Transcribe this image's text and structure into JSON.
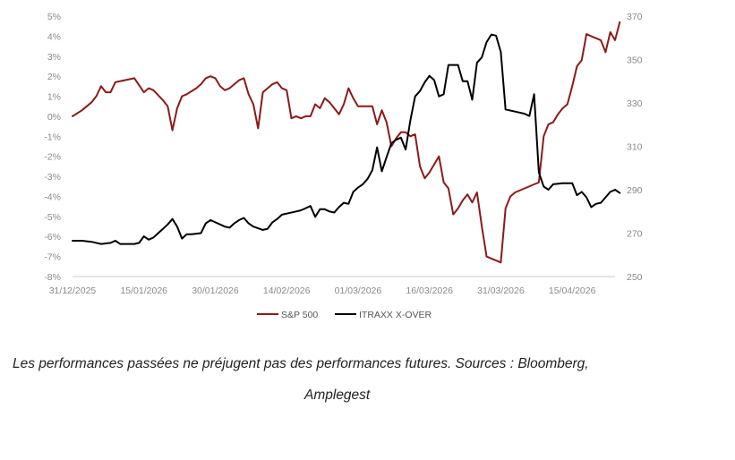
{
  "chart_data": {
    "type": "line",
    "title": "",
    "xlabel": "",
    "ylabel_left": "",
    "ylabel_right": "",
    "x_tick_labels": [
      "31/12/2025",
      "15/01/2026",
      "30/01/2026",
      "14/02/2026",
      "01/03/2026",
      "16/03/2026",
      "31/03/2026",
      "15/04/2026"
    ],
    "x_range": [
      "2025-12-31",
      "2026-04-24"
    ],
    "y_left_ticks": [
      "5%",
      "4%",
      "3%",
      "2%",
      "1%",
      "0%",
      "-1%",
      "-2%",
      "-3%",
      "-4%",
      "-5%",
      "-6%",
      "-7%",
      "-8%"
    ],
    "y_left_range": [
      -8,
      5
    ],
    "y_right_ticks": [
      "370",
      "350",
      "330",
      "310",
      "290",
      "270",
      "250"
    ],
    "y_right_range": [
      250,
      370
    ],
    "grid": false,
    "legend_position": "bottom",
    "series": [
      {
        "name": "S&P 500",
        "axis": "left",
        "color": "#8b1a1a",
        "points": [
          [
            "2025-12-31",
            0.0
          ],
          [
            "2026-01-02",
            0.3
          ],
          [
            "2026-01-04",
            0.7
          ],
          [
            "2026-01-05",
            1.0
          ],
          [
            "2026-01-06",
            1.5
          ],
          [
            "2026-01-07",
            1.2
          ],
          [
            "2026-01-08",
            1.2
          ],
          [
            "2026-01-09",
            1.7
          ],
          [
            "2026-01-11",
            1.8
          ],
          [
            "2026-01-13",
            1.9
          ],
          [
            "2026-01-15",
            1.2
          ],
          [
            "2026-01-16",
            1.4
          ],
          [
            "2026-01-17",
            1.3
          ],
          [
            "2026-01-19",
            0.8
          ],
          [
            "2026-01-20",
            0.5
          ],
          [
            "2026-01-21",
            -0.7
          ],
          [
            "2026-01-22",
            0.4
          ],
          [
            "2026-01-23",
            1.0
          ],
          [
            "2026-01-24",
            1.1
          ],
          [
            "2026-01-26",
            1.4
          ],
          [
            "2026-01-27",
            1.6
          ],
          [
            "2026-01-28",
            1.9
          ],
          [
            "2026-01-29",
            2.0
          ],
          [
            "2026-01-30",
            1.9
          ],
          [
            "2026-01-31",
            1.5
          ],
          [
            "2026-02-01",
            1.3
          ],
          [
            "2026-02-02",
            1.4
          ],
          [
            "2026-02-03",
            1.6
          ],
          [
            "2026-02-04",
            1.8
          ],
          [
            "2026-02-05",
            1.9
          ],
          [
            "2026-02-06",
            1.1
          ],
          [
            "2026-02-07",
            0.6
          ],
          [
            "2026-02-08",
            -0.6
          ],
          [
            "2026-02-09",
            1.2
          ],
          [
            "2026-02-10",
            1.4
          ],
          [
            "2026-02-11",
            1.6
          ],
          [
            "2026-02-12",
            1.7
          ],
          [
            "2026-02-13",
            1.4
          ],
          [
            "2026-02-14",
            1.3
          ],
          [
            "2026-02-15",
            -0.1
          ],
          [
            "2026-02-16",
            0.0
          ],
          [
            "2026-02-17",
            -0.1
          ],
          [
            "2026-02-18",
            0.0
          ],
          [
            "2026-02-19",
            0.0
          ],
          [
            "2026-02-20",
            0.6
          ],
          [
            "2026-02-21",
            0.4
          ],
          [
            "2026-02-22",
            0.9
          ],
          [
            "2026-02-23",
            0.7
          ],
          [
            "2026-02-24",
            0.4
          ],
          [
            "2026-02-25",
            0.1
          ],
          [
            "2026-02-26",
            0.6
          ],
          [
            "2026-02-27",
            1.4
          ],
          [
            "2026-02-28",
            0.9
          ],
          [
            "2026-03-01",
            0.5
          ],
          [
            "2026-03-02",
            0.5
          ],
          [
            "2026-03-03",
            0.5
          ],
          [
            "2026-03-04",
            0.5
          ],
          [
            "2026-03-05",
            -0.4
          ],
          [
            "2026-03-06",
            0.3
          ],
          [
            "2026-03-07",
            -0.3
          ],
          [
            "2026-03-08",
            -1.5
          ],
          [
            "2026-03-09",
            -1.1
          ],
          [
            "2026-03-10",
            -0.8
          ],
          [
            "2026-03-11",
            -0.8
          ],
          [
            "2026-03-12",
            -1.0
          ],
          [
            "2026-03-13",
            -0.9
          ],
          [
            "2026-03-14",
            -2.5
          ],
          [
            "2026-03-15",
            -3.1
          ],
          [
            "2026-03-16",
            -2.8
          ],
          [
            "2026-03-17",
            -2.4
          ],
          [
            "2026-03-18",
            -2.0
          ],
          [
            "2026-03-19",
            -3.3
          ],
          [
            "2026-03-20",
            -3.6
          ],
          [
            "2026-03-21",
            -4.9
          ],
          [
            "2026-03-22",
            -4.6
          ],
          [
            "2026-03-23",
            -4.2
          ],
          [
            "2026-03-24",
            -3.9
          ],
          [
            "2026-03-25",
            -4.3
          ],
          [
            "2026-03-26",
            -3.8
          ],
          [
            "2026-03-27",
            -5.5
          ],
          [
            "2026-03-28",
            -7.0
          ],
          [
            "2026-03-29",
            -7.1
          ],
          [
            "2026-03-30",
            -7.2
          ],
          [
            "2026-03-31",
            -7.3
          ],
          [
            "2026-04-01",
            -4.6
          ],
          [
            "2026-04-02",
            -4.0
          ],
          [
            "2026-04-03",
            -3.8
          ],
          [
            "2026-04-05",
            -3.6
          ],
          [
            "2026-04-07",
            -3.4
          ],
          [
            "2026-04-08",
            -3.3
          ],
          [
            "2026-04-09",
            -1.0
          ],
          [
            "2026-04-10",
            -0.4
          ],
          [
            "2026-04-11",
            -0.3
          ],
          [
            "2026-04-12",
            0.1
          ],
          [
            "2026-04-13",
            0.4
          ],
          [
            "2026-04-14",
            0.6
          ],
          [
            "2026-04-15",
            1.5
          ],
          [
            "2026-04-16",
            2.5
          ],
          [
            "2026-04-17",
            2.8
          ],
          [
            "2026-04-18",
            4.1
          ],
          [
            "2026-04-19",
            4.0
          ],
          [
            "2026-04-21",
            3.8
          ],
          [
            "2026-04-22",
            3.2
          ],
          [
            "2026-04-23",
            4.2
          ],
          [
            "2026-04-24",
            3.8
          ],
          [
            "2026-04-25",
            4.7
          ]
        ]
      },
      {
        "name": "ITRAXX X-OVER",
        "axis": "right",
        "color": "#000000",
        "points": [
          [
            "2025-12-31",
            266.5
          ],
          [
            "2026-01-02",
            266.5
          ],
          [
            "2026-01-04",
            266.0
          ],
          [
            "2026-01-06",
            265.0
          ],
          [
            "2026-01-08",
            265.5
          ],
          [
            "2026-01-09",
            266.5
          ],
          [
            "2026-01-10",
            265.0
          ],
          [
            "2026-01-12",
            265.0
          ],
          [
            "2026-01-13",
            265.0
          ],
          [
            "2026-01-14",
            265.5
          ],
          [
            "2026-01-15",
            268.5
          ],
          [
            "2026-01-16",
            267.0
          ],
          [
            "2026-01-17",
            268.0
          ],
          [
            "2026-01-18",
            270.0
          ],
          [
            "2026-01-19",
            272.0
          ],
          [
            "2026-01-20",
            274.0
          ],
          [
            "2026-01-21",
            276.5
          ],
          [
            "2026-01-22",
            273.0
          ],
          [
            "2026-01-23",
            267.5
          ],
          [
            "2026-01-24",
            269.5
          ],
          [
            "2026-01-25",
            269.5
          ],
          [
            "2026-01-27",
            270.0
          ],
          [
            "2026-01-28",
            274.5
          ],
          [
            "2026-01-29",
            276.0
          ],
          [
            "2026-01-30",
            275.0
          ],
          [
            "2026-02-01",
            273.0
          ],
          [
            "2026-02-02",
            272.5
          ],
          [
            "2026-02-03",
            274.5
          ],
          [
            "2026-02-04",
            276.0
          ],
          [
            "2026-02-05",
            277.0
          ],
          [
            "2026-02-06",
            274.5
          ],
          [
            "2026-02-07",
            273.0
          ],
          [
            "2026-02-09",
            271.5
          ],
          [
            "2026-02-10",
            272.0
          ],
          [
            "2026-02-11",
            275.0
          ],
          [
            "2026-02-12",
            276.5
          ],
          [
            "2026-02-13",
            278.5
          ],
          [
            "2026-02-14",
            279.0
          ],
          [
            "2026-02-16",
            280.0
          ],
          [
            "2026-02-17",
            280.5
          ],
          [
            "2026-02-18",
            281.5
          ],
          [
            "2026-02-19",
            282.5
          ],
          [
            "2026-02-20",
            277.5
          ],
          [
            "2026-02-21",
            281.0
          ],
          [
            "2026-02-22",
            281.0
          ],
          [
            "2026-02-23",
            280.0
          ],
          [
            "2026-02-24",
            279.5
          ],
          [
            "2026-02-25",
            282.0
          ],
          [
            "2026-02-26",
            284.0
          ],
          [
            "2026-02-27",
            283.5
          ],
          [
            "2026-02-28",
            289.0
          ],
          [
            "2026-03-01",
            291.0
          ],
          [
            "2026-03-02",
            292.5
          ],
          [
            "2026-03-03",
            295.0
          ],
          [
            "2026-03-04",
            299.0
          ],
          [
            "2026-03-05",
            309.5
          ],
          [
            "2026-03-06",
            298.5
          ],
          [
            "2026-03-07",
            305.0
          ],
          [
            "2026-03-08",
            311.5
          ],
          [
            "2026-03-09",
            313.0
          ],
          [
            "2026-03-10",
            314.0
          ],
          [
            "2026-03-11",
            308.5
          ],
          [
            "2026-03-12",
            322.0
          ],
          [
            "2026-03-13",
            333.0
          ],
          [
            "2026-03-14",
            335.5
          ],
          [
            "2026-03-15",
            339.5
          ],
          [
            "2026-03-16",
            342.5
          ],
          [
            "2026-03-17",
            340.5
          ],
          [
            "2026-03-18",
            333.0
          ],
          [
            "2026-03-19",
            334.0
          ],
          [
            "2026-03-20",
            347.5
          ],
          [
            "2026-03-21",
            347.5
          ],
          [
            "2026-03-22",
            347.5
          ],
          [
            "2026-03-23",
            340.0
          ],
          [
            "2026-03-24",
            340.0
          ],
          [
            "2026-03-25",
            331.5
          ],
          [
            "2026-03-26",
            348.5
          ],
          [
            "2026-03-27",
            351.0
          ],
          [
            "2026-03-28",
            358.0
          ],
          [
            "2026-03-29",
            361.5
          ],
          [
            "2026-03-30",
            361.0
          ],
          [
            "2026-03-31",
            353.5
          ],
          [
            "2026-04-01",
            327.0
          ],
          [
            "2026-04-03",
            326.0
          ],
          [
            "2026-04-05",
            325.0
          ],
          [
            "2026-04-06",
            324.0
          ],
          [
            "2026-04-07",
            334.0
          ],
          [
            "2026-04-08",
            298.0
          ],
          [
            "2026-04-09",
            291.5
          ],
          [
            "2026-04-10",
            290.0
          ],
          [
            "2026-04-11",
            292.5
          ],
          [
            "2026-04-13",
            293.0
          ],
          [
            "2026-04-15",
            293.0
          ],
          [
            "2026-04-16",
            287.5
          ],
          [
            "2026-04-17",
            289.0
          ],
          [
            "2026-04-18",
            286.5
          ],
          [
            "2026-04-19",
            282.0
          ],
          [
            "2026-04-20",
            283.5
          ],
          [
            "2026-04-21",
            284.0
          ],
          [
            "2026-04-22",
            286.5
          ],
          [
            "2026-04-23",
            289.0
          ],
          [
            "2026-04-24",
            290.0
          ],
          [
            "2026-04-25",
            288.5
          ]
        ]
      }
    ]
  },
  "caption": {
    "line1": "Les performances passées ne préjugent pas des performances futures.  Sources : Bloomberg,",
    "line2": "Amplegest"
  }
}
